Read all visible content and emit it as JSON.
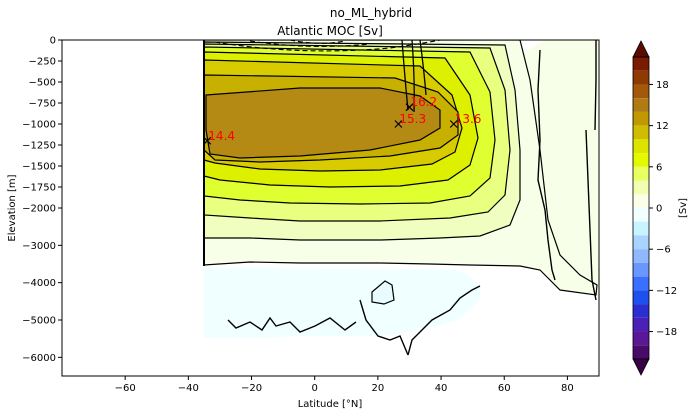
{
  "chart_data": {
    "type": "contour",
    "suptitle": "no_ML_hybrid",
    "title": "Atlantic MOC [Sv]",
    "xlabel": "Latitude [°N]",
    "ylabel": "Elevation [m]",
    "colorbar_label": "[Sv]",
    "xlim": [
      -80,
      90
    ],
    "x_ticks": [
      -60,
      -40,
      -20,
      0,
      20,
      40,
      60,
      80
    ],
    "x_tick_labels": [
      "−60",
      "−40",
      "−20",
      "0",
      "20",
      "40",
      "60",
      "80"
    ],
    "y_ticks": [
      0,
      -250,
      -500,
      -750,
      -1000,
      -1250,
      -1500,
      -1750,
      -2000,
      -3000,
      -4000,
      -5000,
      -6000
    ],
    "y_tick_labels": [
      "0",
      "−250",
      "−500",
      "−750",
      "−1000",
      "−1250",
      "−1500",
      "−1750",
      "−2000",
      "−3000",
      "−4000",
      "−5000",
      "−6000"
    ],
    "colorbar_ticks": [
      18,
      12,
      6,
      0,
      -6,
      -12,
      -18
    ],
    "colorbar_tick_labels": [
      "18",
      "12",
      "6",
      "0",
      "−6",
      "−12",
      "−18"
    ],
    "colorbar_range": [
      -22,
      22
    ],
    "colorbar_extend": "both",
    "contour_interval_sv": 2,
    "annotations": [
      {
        "label": "14.4",
        "lat": -34,
        "depth": -1200
      },
      {
        "label": "15.3",
        "lat": 26.5,
        "depth": -1000
      },
      {
        "label": "16.2",
        "lat": 30,
        "depth": -800
      },
      {
        "label": "13.6",
        "lat": 44,
        "depth": -1000
      }
    ],
    "annotation_color": "#ff0000",
    "colors": {
      "max_brown": "#b07a14",
      "mid_olive": "#c8b400",
      "yellow": "#e6f000",
      "pale_yellow": "#f8ffe8",
      "pale_cyan": "#f0ffff"
    }
  }
}
